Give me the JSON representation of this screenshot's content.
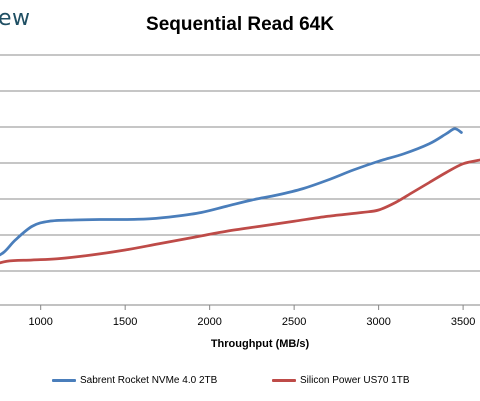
{
  "watermark": {
    "text": "ew"
  },
  "chart_data": {
    "type": "line",
    "title": "Sequential Read 64K",
    "xlabel": "Throughput (MB/s)",
    "ylabel": "",
    "x_ticks": [
      1000,
      1500,
      2000,
      2500,
      3000,
      3500
    ],
    "xlim": [
      700,
      3600
    ],
    "grid": true,
    "legend_position": "bottom",
    "series": [
      {
        "name": "Sabrent Rocket NVMe 4.0 2TB",
        "color": "#4a7ebb",
        "points": [
          {
            "x": 700,
            "y": 0.18
          },
          {
            "x": 780,
            "y": 0.21
          },
          {
            "x": 850,
            "y": 0.26
          },
          {
            "x": 950,
            "y": 0.315
          },
          {
            "x": 1050,
            "y": 0.335
          },
          {
            "x": 1200,
            "y": 0.34
          },
          {
            "x": 1350,
            "y": 0.342
          },
          {
            "x": 1500,
            "y": 0.342
          },
          {
            "x": 1650,
            "y": 0.345
          },
          {
            "x": 1800,
            "y": 0.355
          },
          {
            "x": 1950,
            "y": 0.37
          },
          {
            "x": 2100,
            "y": 0.395
          },
          {
            "x": 2250,
            "y": 0.42
          },
          {
            "x": 2400,
            "y": 0.44
          },
          {
            "x": 2550,
            "y": 0.465
          },
          {
            "x": 2700,
            "y": 0.5
          },
          {
            "x": 2850,
            "y": 0.54
          },
          {
            "x": 3000,
            "y": 0.575
          },
          {
            "x": 3150,
            "y": 0.605
          },
          {
            "x": 3300,
            "y": 0.645
          },
          {
            "x": 3400,
            "y": 0.685
          },
          {
            "x": 3450,
            "y": 0.705
          },
          {
            "x": 3490,
            "y": 0.69
          }
        ]
      },
      {
        "name": "Silicon Power US70 1TB",
        "color": "#be4b48",
        "points": [
          {
            "x": 700,
            "y": 0.155
          },
          {
            "x": 800,
            "y": 0.175
          },
          {
            "x": 950,
            "y": 0.18
          },
          {
            "x": 1100,
            "y": 0.185
          },
          {
            "x": 1300,
            "y": 0.2
          },
          {
            "x": 1500,
            "y": 0.22
          },
          {
            "x": 1700,
            "y": 0.245
          },
          {
            "x": 1900,
            "y": 0.27
          },
          {
            "x": 2100,
            "y": 0.295
          },
          {
            "x": 2300,
            "y": 0.315
          },
          {
            "x": 2500,
            "y": 0.335
          },
          {
            "x": 2700,
            "y": 0.355
          },
          {
            "x": 2900,
            "y": 0.37
          },
          {
            "x": 3000,
            "y": 0.38
          },
          {
            "x": 3100,
            "y": 0.41
          },
          {
            "x": 3200,
            "y": 0.45
          },
          {
            "x": 3300,
            "y": 0.49
          },
          {
            "x": 3400,
            "y": 0.53
          },
          {
            "x": 3500,
            "y": 0.565
          },
          {
            "x": 3600,
            "y": 0.58
          }
        ]
      }
    ]
  }
}
